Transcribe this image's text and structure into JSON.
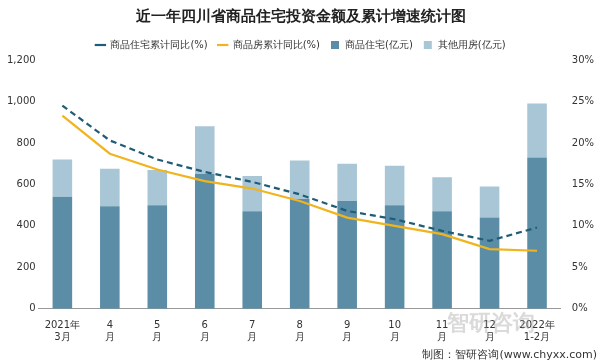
{
  "chart_data": {
    "type": "bar",
    "title": "近一年四川省商品住宅投资金额及累计增速统计图",
    "source": "制图：智研咨询(www.chyxx.com)",
    "watermark": "智研咨询",
    "categories": [
      [
        "2021年",
        "3月"
      ],
      [
        "4",
        "月"
      ],
      [
        "5",
        "月"
      ],
      [
        "6",
        "月"
      ],
      [
        "7",
        "月"
      ],
      [
        "8",
        "月"
      ],
      [
        "9",
        "月"
      ],
      [
        "10",
        "月"
      ],
      [
        "11",
        "月"
      ],
      [
        "12",
        "月"
      ],
      [
        "2022年",
        "1-2月"
      ]
    ],
    "series": [
      {
        "name": "商品住宅(亿元)",
        "type": "bar",
        "color": "#5b8ea6",
        "values": [
          540,
          495,
          500,
          650,
          470,
          530,
          520,
          500,
          470,
          440,
          730
        ]
      },
      {
        "name": "其他用房(亿元)",
        "type": "bar",
        "color": "#a9c6d6",
        "values": [
          180,
          180,
          170,
          230,
          170,
          185,
          180,
          190,
          165,
          150,
          260
        ]
      },
      {
        "name": "商品住宅累计同比(%)",
        "type": "line",
        "axis": "y2",
        "line_style": "dashed",
        "color": "#1f5c78",
        "values": [
          24.5,
          20.3,
          18.0,
          16.5,
          15.3,
          13.8,
          11.8,
          10.8,
          9.4,
          8.2,
          9.8
        ]
      },
      {
        "name": "商品房累计同比(%)",
        "type": "line",
        "axis": "y2",
        "line_style": "solid",
        "color": "#f0b41e",
        "values": [
          23.3,
          18.7,
          16.8,
          15.4,
          14.5,
          13.0,
          11.0,
          10.0,
          9.0,
          7.2,
          7.0
        ]
      }
    ],
    "stacked": true,
    "grid": false,
    "legend": "top",
    "ylim": [
      0,
      1200
    ],
    "yticks": [
      0,
      200,
      400,
      600,
      800,
      {
        "value": 1000,
        "label": "1,000"
      },
      {
        "value": 1200,
        "label": "1,200"
      }
    ],
    "y2lim": [
      0,
      30
    ],
    "y2ticks": [
      {
        "value": 0,
        "label": "0%"
      },
      {
        "value": 5,
        "label": "5%"
      },
      {
        "value": 10,
        "label": "10%"
      },
      {
        "value": 15,
        "label": "15%"
      },
      {
        "value": 20,
        "label": "20%"
      },
      {
        "value": 25,
        "label": "25%"
      },
      {
        "value": 30,
        "label": "30%"
      }
    ]
  }
}
